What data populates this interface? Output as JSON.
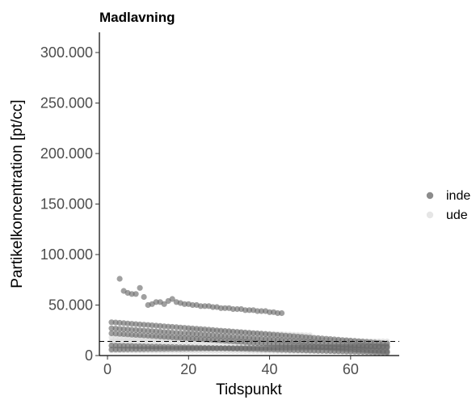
{
  "chart_data": {
    "type": "scatter",
    "title": "Madlavning",
    "xlabel": "Tidspunkt",
    "ylabel": "Partikelkoncentration [pt/cc]",
    "xlim": [
      -2,
      72
    ],
    "ylim": [
      0,
      320000
    ],
    "x_ticks": [
      0,
      20,
      40,
      60
    ],
    "x_tick_labels": [
      "0",
      "20",
      "40",
      "60"
    ],
    "y_ticks": [
      0,
      50000,
      100000,
      150000,
      200000,
      250000,
      300000
    ],
    "y_tick_labels": [
      "0",
      "50.000",
      "100.000",
      "150.000",
      "200.000",
      "250.000",
      "300.000"
    ],
    "grid": false,
    "legend_position": "right",
    "reference_line": {
      "style": "dashed",
      "y": 14000
    },
    "series": [
      {
        "name": "inde",
        "color": "#666666",
        "tracks": [
          {
            "x_start": 3,
            "x_end": 43,
            "points": [
              [
                3,
                76000
              ],
              [
                4,
                64000
              ],
              [
                5,
                62000
              ],
              [
                6,
                61000
              ],
              [
                7,
                61000
              ],
              [
                8,
                67000
              ],
              [
                9,
                58000
              ],
              [
                10,
                50000
              ],
              [
                11,
                51000
              ],
              [
                12,
                53000
              ],
              [
                13,
                53000
              ],
              [
                14,
                51000
              ],
              [
                15,
                54000
              ],
              [
                16,
                56000
              ],
              [
                17,
                53000
              ],
              [
                18,
                52000
              ],
              [
                19,
                51000
              ],
              [
                20,
                51000
              ],
              [
                21,
                50000
              ],
              [
                22,
                50000
              ],
              [
                23,
                49000
              ],
              [
                24,
                49000
              ],
              [
                25,
                49000
              ],
              [
                26,
                48000
              ],
              [
                27,
                48000
              ],
              [
                28,
                47000
              ],
              [
                29,
                47000
              ],
              [
                30,
                47000
              ],
              [
                31,
                46000
              ],
              [
                32,
                46000
              ],
              [
                33,
                46000
              ],
              [
                34,
                45000
              ],
              [
                35,
                45000
              ],
              [
                36,
                45000
              ],
              [
                37,
                44000
              ],
              [
                38,
                44000
              ],
              [
                39,
                44000
              ],
              [
                40,
                43000
              ],
              [
                41,
                43000
              ],
              [
                42,
                42000
              ],
              [
                43,
                42000
              ]
            ]
          },
          {
            "x_start": 1,
            "x_end": 69,
            "y_start": 33000,
            "y_end": 12000
          },
          {
            "x_start": 1,
            "x_end": 69,
            "y_start": 27000,
            "y_end": 8000
          },
          {
            "x_start": 1,
            "x_end": 69,
            "y_start": 22000,
            "y_end": 4000
          },
          {
            "x_start": 1,
            "x_end": 69,
            "y_start": 10000,
            "y_end": 3000
          },
          {
            "x_start": 1,
            "x_end": 69,
            "y_start": 6000,
            "y_end": 9000
          }
        ]
      },
      {
        "name": "ude",
        "color": "#d6d6d6",
        "tracks": [
          {
            "x_start": 1,
            "x_end": 69,
            "y_start": 18000,
            "y_end": 14000
          },
          {
            "x_start": 1,
            "x_end": 69,
            "y_start": 14000,
            "y_end": 10000
          },
          {
            "x_start": 1,
            "x_end": 69,
            "y_start": 9000,
            "y_end": 6000
          },
          {
            "x_start": 1,
            "x_end": 69,
            "y_start": 5000,
            "y_end": 4000
          },
          {
            "x_start": 20,
            "x_end": 50,
            "y_start": 25000,
            "y_end": 20000
          }
        ]
      }
    ]
  }
}
